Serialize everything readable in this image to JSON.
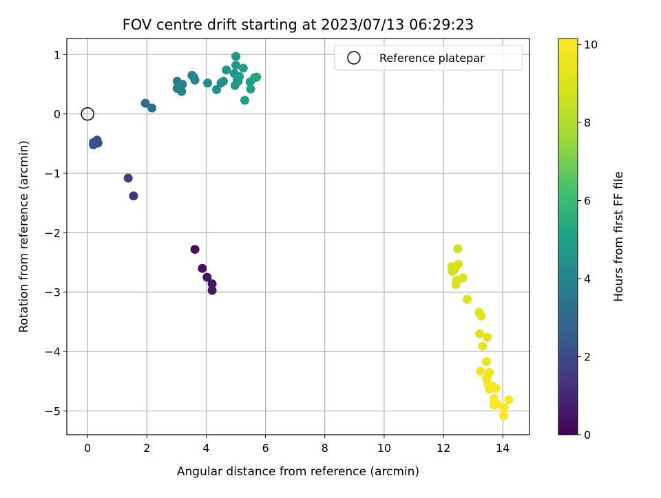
{
  "chart_data": {
    "type": "scatter",
    "title": "FOV centre drift starting at 2023/07/13 06:29:23",
    "xlabel": "Angular distance from reference (arcmin)",
    "ylabel": "Rotation from reference (arcmin)",
    "xlim": [
      -0.7,
      14.9
    ],
    "ylim": [
      -5.4,
      1.27
    ],
    "xticks": [
      0,
      2,
      4,
      6,
      8,
      10,
      12,
      14
    ],
    "yticks": [
      1,
      0,
      -1,
      -2,
      -3,
      -4,
      -5
    ],
    "grid": true,
    "legend": {
      "placement": "top-right",
      "entries": [
        "Reference platepar"
      ]
    },
    "colorbar": {
      "label": "Hours from first FF file",
      "range": [
        0,
        10.15
      ],
      "ticks": [
        0,
        2,
        4,
        6,
        8,
        10
      ],
      "colormap": "viridis"
    },
    "reference_point": {
      "x": 0,
      "y": 0,
      "label": "Reference platepar"
    },
    "series": [
      {
        "points": [
          {
            "x": 3.62,
            "y": -2.28,
            "c": 0.3
          },
          {
            "x": 3.87,
            "y": -2.6,
            "c": 0.4
          },
          {
            "x": 4.03,
            "y": -2.75,
            "c": 0.5
          },
          {
            "x": 4.2,
            "y": -2.86,
            "c": 0.55
          },
          {
            "x": 4.2,
            "y": -2.97,
            "c": 0.6
          },
          {
            "x": 1.55,
            "y": -1.38,
            "c": 1.3
          },
          {
            "x": 1.37,
            "y": -1.08,
            "c": 1.5
          },
          {
            "x": 0.2,
            "y": -0.48,
            "c": 2.1
          },
          {
            "x": 0.2,
            "y": -0.52,
            "c": 2.15
          },
          {
            "x": 0.32,
            "y": -0.44,
            "c": 2.2
          },
          {
            "x": 0.35,
            "y": -0.49,
            "c": 2.25
          },
          {
            "x": 1.95,
            "y": 0.18,
            "c": 3.1
          },
          {
            "x": 2.17,
            "y": 0.1,
            "c": 3.2
          },
          {
            "x": 3.02,
            "y": 0.55,
            "c": 3.8
          },
          {
            "x": 3.02,
            "y": 0.43,
            "c": 3.85
          },
          {
            "x": 3.2,
            "y": 0.5,
            "c": 3.9
          },
          {
            "x": 3.17,
            "y": 0.38,
            "c": 3.95
          },
          {
            "x": 3.52,
            "y": 0.65,
            "c": 4.0
          },
          {
            "x": 3.58,
            "y": 0.62,
            "c": 4.05
          },
          {
            "x": 3.62,
            "y": 0.57,
            "c": 4.1
          },
          {
            "x": 4.05,
            "y": 0.52,
            "c": 4.2
          },
          {
            "x": 4.35,
            "y": 0.41,
            "c": 4.3
          },
          {
            "x": 4.5,
            "y": 0.52,
            "c": 4.4
          },
          {
            "x": 4.58,
            "y": 0.55,
            "c": 4.45
          },
          {
            "x": 4.68,
            "y": 0.74,
            "c": 4.5
          },
          {
            "x": 4.95,
            "y": 0.68,
            "c": 4.6
          },
          {
            "x": 4.97,
            "y": 0.48,
            "c": 4.65
          },
          {
            "x": 5.0,
            "y": 0.97,
            "c": 4.7
          },
          {
            "x": 5.0,
            "y": 0.82,
            "c": 4.75
          },
          {
            "x": 5.05,
            "y": 0.58,
            "c": 4.8
          },
          {
            "x": 5.08,
            "y": 0.55,
            "c": 4.85
          },
          {
            "x": 5.12,
            "y": 0.63,
            "c": 4.9
          },
          {
            "x": 5.25,
            "y": 0.77,
            "c": 4.95
          },
          {
            "x": 5.3,
            "y": 0.23,
            "c": 5.0
          },
          {
            "x": 5.48,
            "y": 0.54,
            "c": 5.05
          },
          {
            "x": 5.5,
            "y": 0.42,
            "c": 5.1
          },
          {
            "x": 5.63,
            "y": 0.61,
            "c": 5.15
          },
          {
            "x": 5.7,
            "y": 0.62,
            "c": 5.2
          },
          {
            "x": 12.48,
            "y": -2.27,
            "c": 8.7
          },
          {
            "x": 12.28,
            "y": -2.57,
            "c": 8.75
          },
          {
            "x": 12.3,
            "y": -2.65,
            "c": 8.8
          },
          {
            "x": 12.38,
            "y": -2.62,
            "c": 8.85
          },
          {
            "x": 12.5,
            "y": -2.53,
            "c": 8.9
          },
          {
            "x": 12.45,
            "y": -2.8,
            "c": 8.95
          },
          {
            "x": 12.42,
            "y": -2.87,
            "c": 9.0
          },
          {
            "x": 12.65,
            "y": -2.76,
            "c": 9.05
          },
          {
            "x": 12.8,
            "y": -3.12,
            "c": 9.1
          },
          {
            "x": 13.2,
            "y": -3.34,
            "c": 9.15
          },
          {
            "x": 13.27,
            "y": -3.4,
            "c": 9.2
          },
          {
            "x": 13.22,
            "y": -3.7,
            "c": 9.25
          },
          {
            "x": 13.48,
            "y": -3.76,
            "c": 9.3
          },
          {
            "x": 13.32,
            "y": -3.91,
            "c": 9.35
          },
          {
            "x": 13.45,
            "y": -4.17,
            "c": 9.4
          },
          {
            "x": 13.25,
            "y": -4.33,
            "c": 9.7
          },
          {
            "x": 13.45,
            "y": -4.45,
            "c": 9.75
          },
          {
            "x": 13.55,
            "y": -4.35,
            "c": 9.8
          },
          {
            "x": 13.5,
            "y": -4.55,
            "c": 9.85
          },
          {
            "x": 13.55,
            "y": -4.63,
            "c": 9.9
          },
          {
            "x": 13.65,
            "y": -4.58,
            "c": 9.95
          },
          {
            "x": 13.77,
            "y": -4.62,
            "c": 10.0
          },
          {
            "x": 13.7,
            "y": -4.79,
            "c": 10.02
          },
          {
            "x": 13.7,
            "y": -4.9,
            "c": 10.05
          },
          {
            "x": 13.8,
            "y": -4.88,
            "c": 10.08
          },
          {
            "x": 14.05,
            "y": -4.94,
            "c": 10.1
          },
          {
            "x": 14.2,
            "y": -4.81,
            "c": 10.12
          },
          {
            "x": 14.03,
            "y": -5.08,
            "c": 10.15
          }
        ]
      }
    ]
  }
}
